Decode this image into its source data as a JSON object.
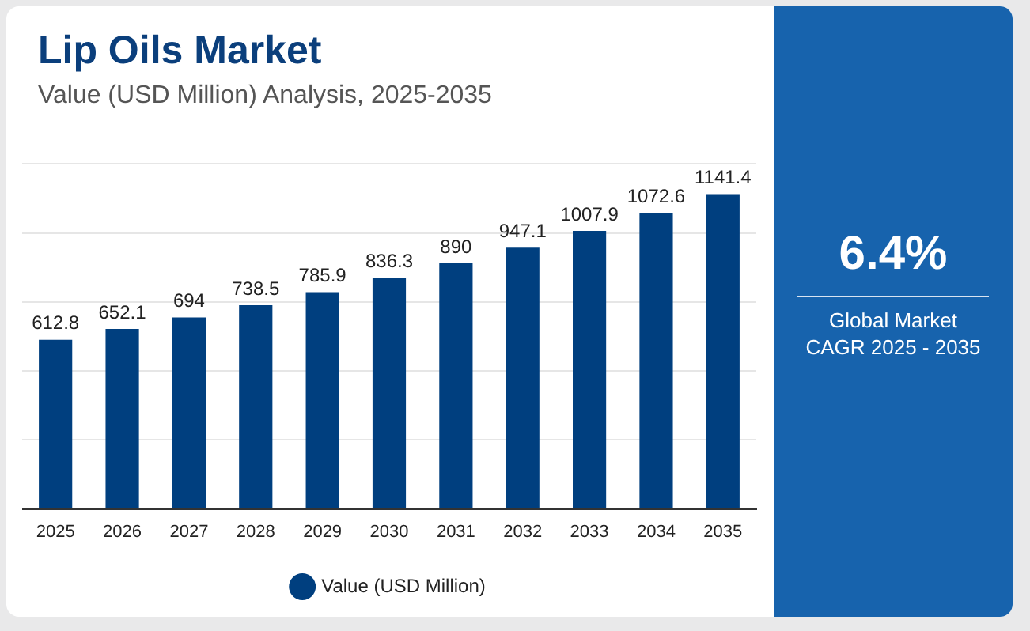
{
  "chart_data": {
    "type": "bar",
    "title": "Lip Oils Market",
    "subtitle": "Value (USD Million) Analysis, 2025-2035",
    "categories": [
      "2025",
      "2026",
      "2027",
      "2028",
      "2029",
      "2030",
      "2031",
      "2032",
      "2033",
      "2034",
      "2035"
    ],
    "series": [
      {
        "name": "Value (USD Million)",
        "color": "#003f7f",
        "values": [
          612.8,
          652.1,
          694,
          738.5,
          785.9,
          836.3,
          890,
          947.1,
          1007.9,
          1072.6,
          1141.4
        ]
      }
    ],
    "ylim": [
      0,
      1260
    ],
    "yticks": [
      {
        "value": 0,
        "label": null
      },
      {
        "value": 250,
        "label": null
      },
      {
        "value": 500,
        "label": null
      },
      {
        "value": 750,
        "label": null
      },
      {
        "value": 1000,
        "label": null
      },
      {
        "value": 1250,
        "label": null
      }
    ],
    "tick_labels": "x",
    "grid": "y",
    "legend": "bottom",
    "data_labels": true,
    "annotations": [
      "6.4%",
      "Global Market CAGR 2025 - 2035"
    ]
  }
}
